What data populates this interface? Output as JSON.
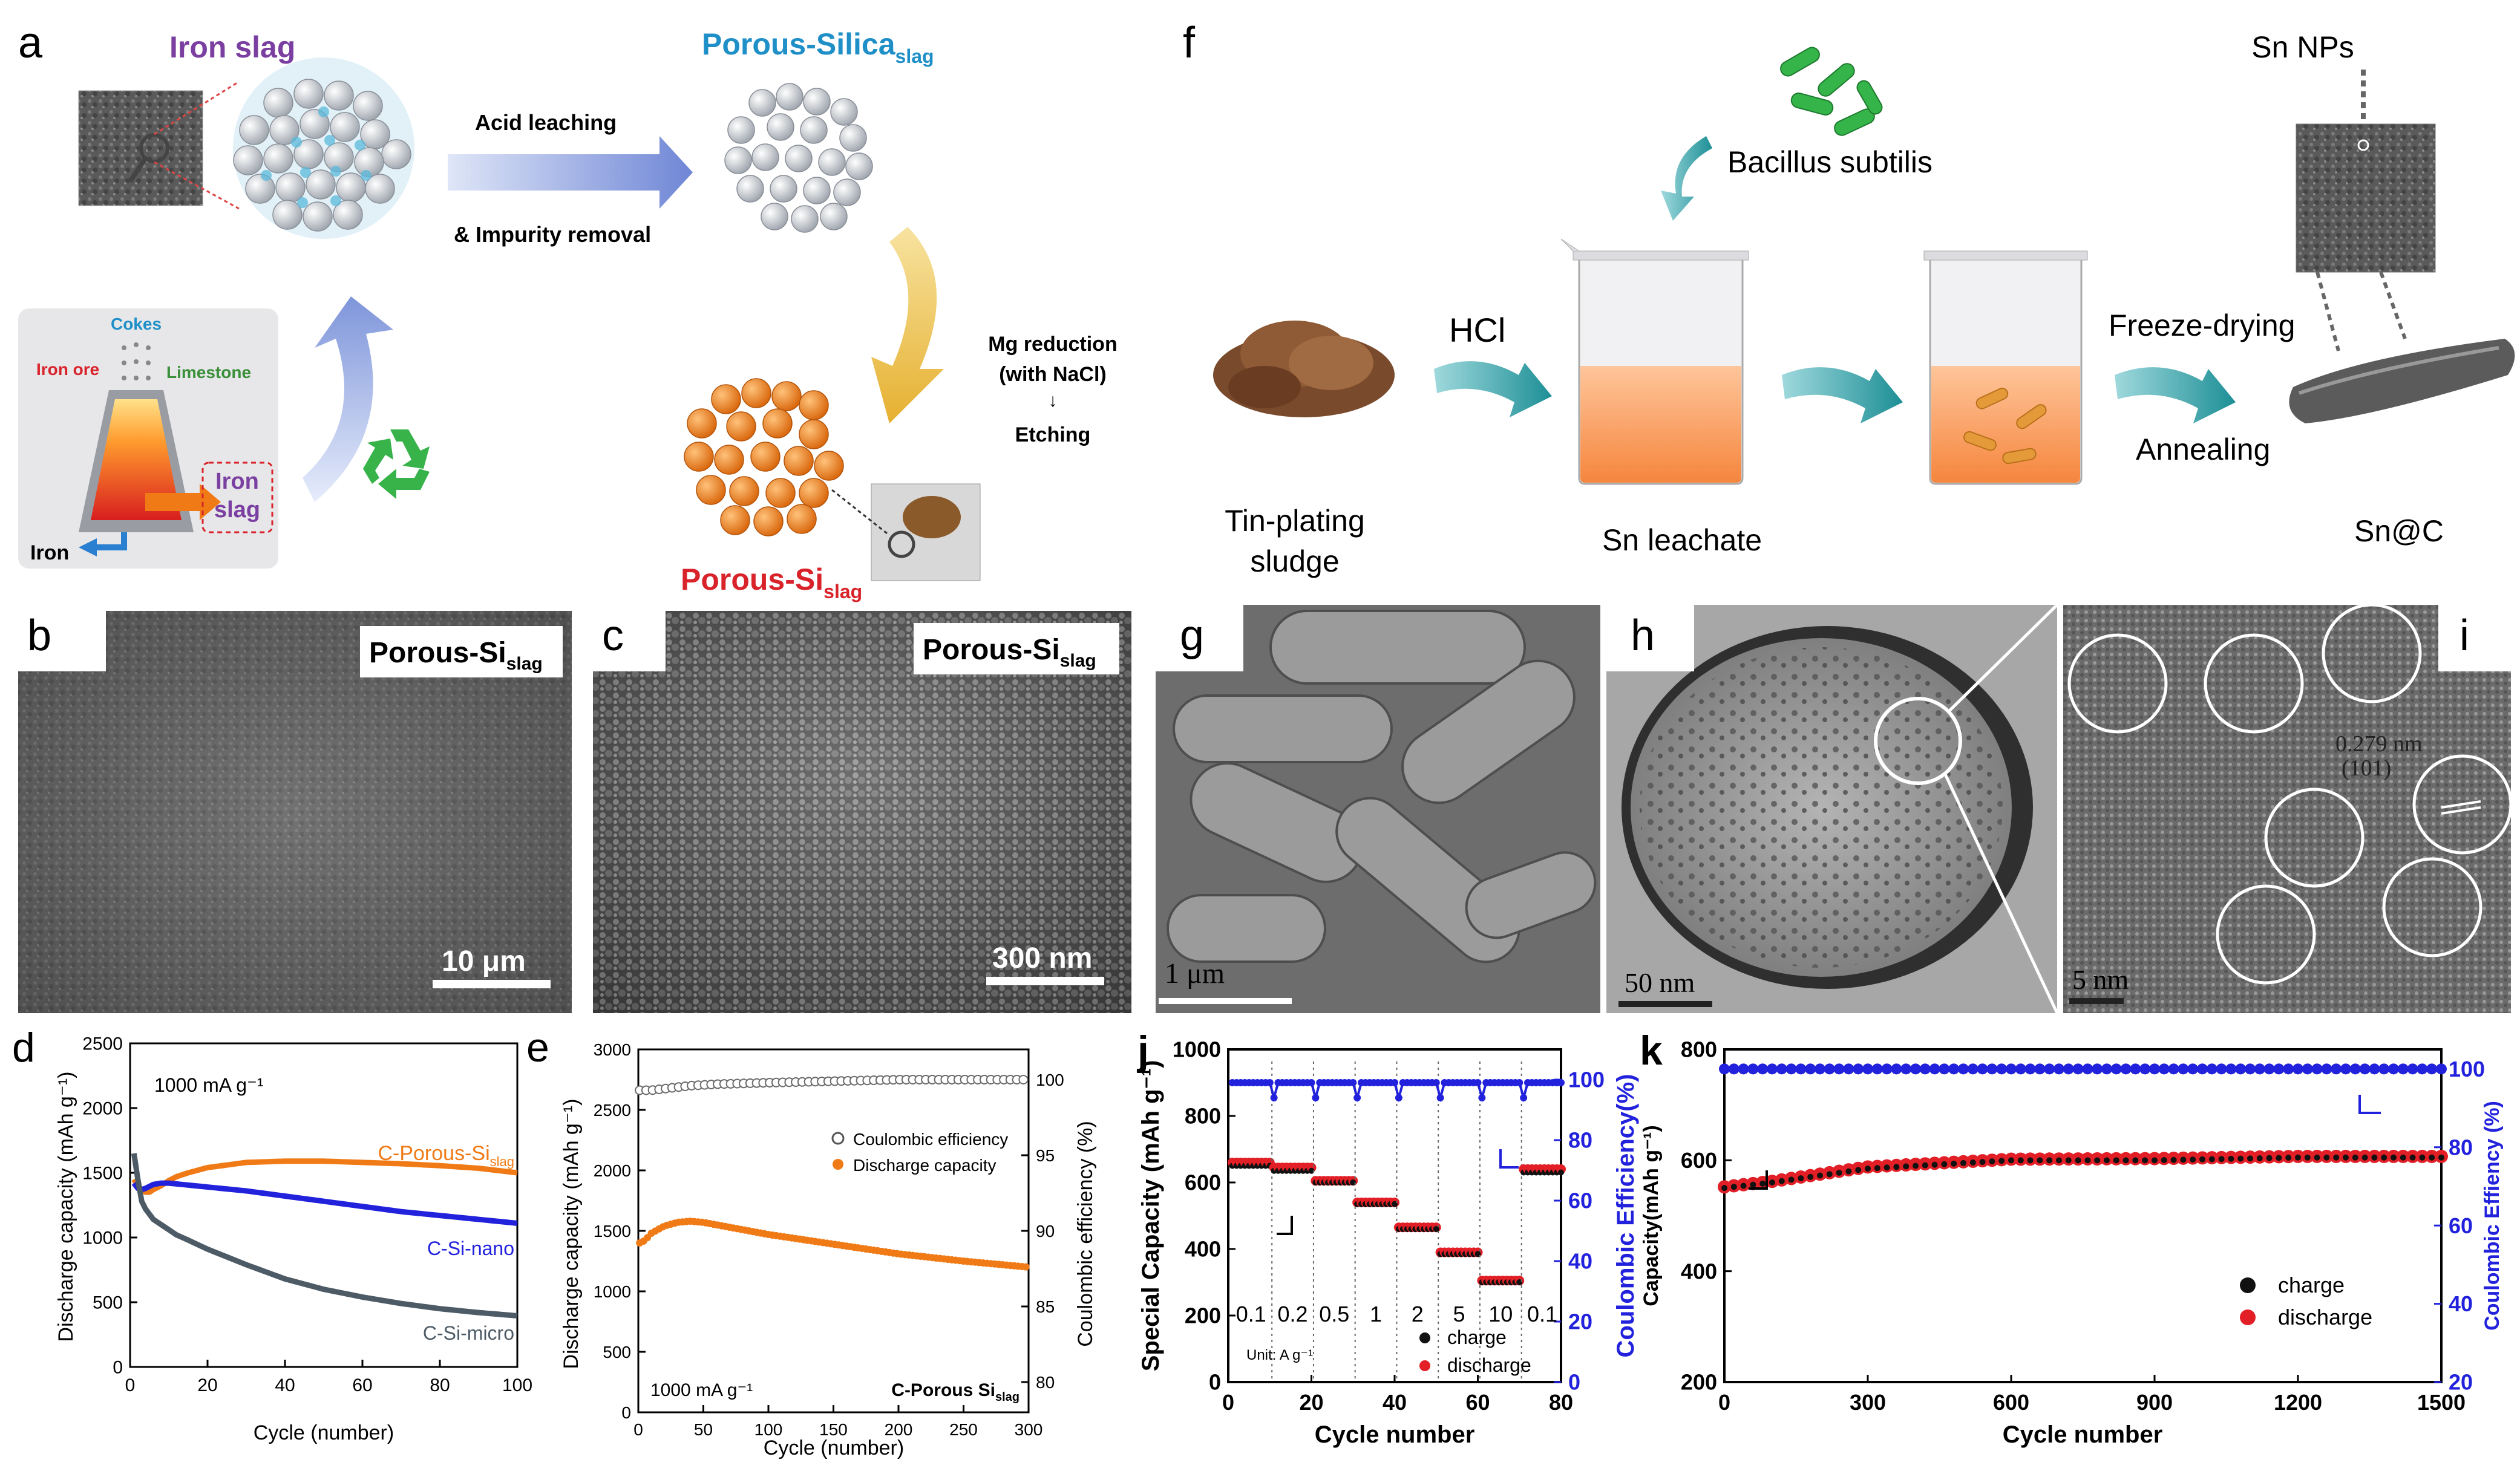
{
  "panel_letters": {
    "a": "a",
    "b": "b",
    "c": "c",
    "d": "d",
    "e": "e",
    "f": "f",
    "g": "g",
    "h": "h",
    "i": "i",
    "j": "j",
    "k": "k"
  },
  "panel_a": {
    "iron_slag": "Iron slag",
    "porous_silica": "Porous-Silica",
    "porous_silica_sub": "slag",
    "acid_leaching": "Acid leaching",
    "impurity_removal": "& Impurity removal",
    "mg_reduction": "Mg reduction",
    "with_nacl": "(with NaCl)",
    "arrow_down": "↓",
    "etching": "Etching",
    "porous_si": "Porous-Si",
    "porous_si_sub": "slag",
    "cokes": "Cokes",
    "iron_ore": "Iron ore",
    "limestone": "Limestone",
    "iron_slag_box_1": "Iron",
    "iron_slag_box_2": "slag",
    "iron_out": "Iron"
  },
  "panel_b": {
    "label": "Porous-Si",
    "sub": "slag",
    "scale": "10 μm"
  },
  "panel_c": {
    "label": "Porous-Si",
    "sub": "slag",
    "scale": "300 nm"
  },
  "panel_f": {
    "bacillus": "Bacillus subtilis",
    "sn_nps": "Sn NPs",
    "hcl": "HCl",
    "freeze_drying": "Freeze-drying",
    "annealing": "Annealing",
    "sludge_1": "Tin-plating",
    "sludge_2": "sludge",
    "sn_leachate": "Sn leachate",
    "snc": "Sn@C"
  },
  "panel_g": {
    "scale": "1 μm"
  },
  "panel_h": {
    "scale": "50 nm"
  },
  "panel_i": {
    "d_spacing": "0.279 nm",
    "plane": "(101)",
    "scale": "5 nm"
  },
  "colors": {
    "orange": "#f07b16",
    "blue": "#2222dd",
    "slate": "#4d5b66",
    "purple": "#7a3fa0",
    "cyan": "#1f8fc8",
    "red": "#d9232b",
    "teal": "#2a9aa0"
  },
  "chart_data": [
    {
      "panel": "d",
      "type": "line",
      "ylabel": "Discharge capacity (mAh g⁻¹)",
      "xlabel": "Cycle (number)",
      "xlim": [
        0,
        100
      ],
      "ylim": [
        0,
        2500
      ],
      "xticks": [
        "0",
        "20",
        "40",
        "60",
        "80",
        "100"
      ],
      "yticks": [
        "0",
        "500",
        "1000",
        "1500",
        "2000",
        "2500"
      ],
      "annotation": "1000 mA g⁻¹",
      "series": [
        {
          "name": "C-Porous-Si",
          "name_sub": "slag",
          "color": "#f07b16",
          "x": [
            1,
            2,
            3,
            4,
            5,
            6,
            8,
            10,
            12,
            15,
            20,
            25,
            30,
            35,
            40,
            50,
            60,
            70,
            80,
            90,
            100
          ],
          "y": [
            1450,
            1400,
            1370,
            1350,
            1350,
            1370,
            1400,
            1440,
            1470,
            1500,
            1540,
            1560,
            1580,
            1585,
            1590,
            1590,
            1580,
            1570,
            1555,
            1535,
            1500
          ]
        },
        {
          "name": "C-Si-nano",
          "color": "#2222dd",
          "x": [
            1,
            2,
            3,
            4,
            5,
            6,
            8,
            10,
            15,
            20,
            30,
            40,
            50,
            60,
            70,
            80,
            90,
            100
          ],
          "y": [
            1420,
            1380,
            1370,
            1380,
            1395,
            1410,
            1420,
            1420,
            1405,
            1390,
            1360,
            1320,
            1280,
            1240,
            1200,
            1170,
            1140,
            1110
          ]
        },
        {
          "name": "C-Si-micro",
          "color": "#4d5b66",
          "x": [
            1,
            2,
            3,
            4,
            5,
            6,
            8,
            10,
            12,
            15,
            20,
            25,
            30,
            40,
            50,
            60,
            70,
            80,
            90,
            100
          ],
          "y": [
            1650,
            1450,
            1280,
            1220,
            1180,
            1140,
            1100,
            1060,
            1020,
            980,
            910,
            850,
            790,
            680,
            600,
            540,
            490,
            450,
            420,
            395
          ]
        }
      ]
    },
    {
      "panel": "e",
      "type": "line",
      "ylabel": "Discharge capacity (mAh g⁻¹)",
      "ylabel_right": "Coulombic efficiency (%)",
      "xlabel": "Cycle (number)",
      "xlim": [
        0,
        300
      ],
      "ylim": [
        0,
        3000
      ],
      "ylim_right": [
        78,
        102
      ],
      "xticks": [
        "0",
        "50",
        "100",
        "150",
        "200",
        "250",
        "300"
      ],
      "yticks": [
        "0",
        "500",
        "1000",
        "1500",
        "2000",
        "2500",
        "3000"
      ],
      "yticks_right": [
        "80",
        "85",
        "90",
        "95",
        "100"
      ],
      "annotation": "1000 mA g⁻¹",
      "sample_label": "C-Porous Si",
      "sample_label_sub": "slag",
      "series": [
        {
          "name": "Coulombic efficiency",
          "axis": "right",
          "color": "#555555",
          "marker": "open-circle",
          "x": [
            1,
            10,
            20,
            40,
            60,
            100,
            150,
            200,
            250,
            300
          ],
          "y": [
            99.3,
            99.3,
            99.4,
            99.6,
            99.7,
            99.8,
            99.9,
            100,
            100,
            100
          ]
        },
        {
          "name": "Discharge capacity",
          "axis": "left",
          "color": "#f07b16",
          "marker": "filled-circle",
          "x": [
            1,
            5,
            10,
            20,
            30,
            40,
            50,
            75,
            100,
            150,
            200,
            250,
            300
          ],
          "y": [
            1400,
            1420,
            1480,
            1540,
            1570,
            1580,
            1570,
            1520,
            1470,
            1390,
            1310,
            1250,
            1200
          ]
        }
      ]
    },
    {
      "panel": "j",
      "type": "scatter",
      "ylabel": "Special Capacity (mAh g⁻¹)",
      "ylabel_right": "Coulombic Efficiency(%)",
      "xlabel": "Cycle number",
      "xlim": [
        0,
        80
      ],
      "ylim": [
        0,
        1000
      ],
      "ylim_right": [
        0,
        110
      ],
      "xticks": [
        "0",
        "20",
        "40",
        "60",
        "80"
      ],
      "yticks": [
        "0",
        "200",
        "400",
        "600",
        "800",
        "1000"
      ],
      "yticks_right": [
        "0",
        "20",
        "40",
        "60",
        "80",
        "100"
      ],
      "rate_labels": [
        "0.1",
        "0.2",
        "0.5",
        "1",
        "2",
        "5",
        "10",
        "0.1"
      ],
      "unit_label": "Unit: A g⁻¹",
      "segments": [
        {
          "rate": "0.1",
          "x0": 1,
          "x1": 10,
          "charge": 650,
          "discharge": 660
        },
        {
          "rate": "0.2",
          "x0": 11,
          "x1": 20,
          "charge": 635,
          "discharge": 645
        },
        {
          "rate": "0.5",
          "x0": 21,
          "x1": 30,
          "charge": 600,
          "discharge": 605
        },
        {
          "rate": "1",
          "x0": 31,
          "x1": 40,
          "charge": 535,
          "discharge": 540
        },
        {
          "rate": "2",
          "x0": 41,
          "x1": 50,
          "charge": 460,
          "discharge": 465
        },
        {
          "rate": "5",
          "x0": 51,
          "x1": 60,
          "charge": 385,
          "discharge": 390
        },
        {
          "rate": "10",
          "x0": 61,
          "x1": 70,
          "charge": 300,
          "discharge": 305
        },
        {
          "rate": "0.1",
          "x0": 71,
          "x1": 80,
          "charge": 630,
          "discharge": 640
        }
      ],
      "series": [
        {
          "name": "charge",
          "color": "#111111"
        },
        {
          "name": "discharge",
          "color": "#e21f26"
        },
        {
          "name": "Coulombic Efficiency",
          "color": "#2222dd",
          "axis": "right",
          "value": 99
        }
      ]
    },
    {
      "panel": "k",
      "type": "scatter",
      "ylabel": "Capacity(mAh g⁻¹)",
      "ylabel_right": "Coulombic Effiency (%)",
      "xlabel": "Cycle number",
      "xlim": [
        0,
        1500
      ],
      "ylim": [
        200,
        800
      ],
      "ylim_right": [
        20,
        105
      ],
      "xticks": [
        "0",
        "300",
        "600",
        "900",
        "1200",
        "1500"
      ],
      "yticks": [
        "200",
        "400",
        "600",
        "800"
      ],
      "yticks_right": [
        "20",
        "40",
        "60",
        "80",
        "100"
      ],
      "series": [
        {
          "name": "charge",
          "color": "#111111",
          "x": [
            0,
            100,
            300,
            600,
            900,
            1200,
            1500
          ],
          "y": [
            550,
            560,
            585,
            600,
            600,
            605,
            605
          ]
        },
        {
          "name": "discharge",
          "color": "#e21f26",
          "x": [
            0,
            100,
            300,
            600,
            900,
            1200,
            1500
          ],
          "y": [
            552,
            562,
            588,
            602,
            603,
            607,
            607
          ]
        },
        {
          "name": "Coulombic Effiency",
          "color": "#2222dd",
          "axis": "right",
          "x": [
            0,
            1500
          ],
          "y": [
            100,
            100
          ]
        }
      ]
    }
  ]
}
